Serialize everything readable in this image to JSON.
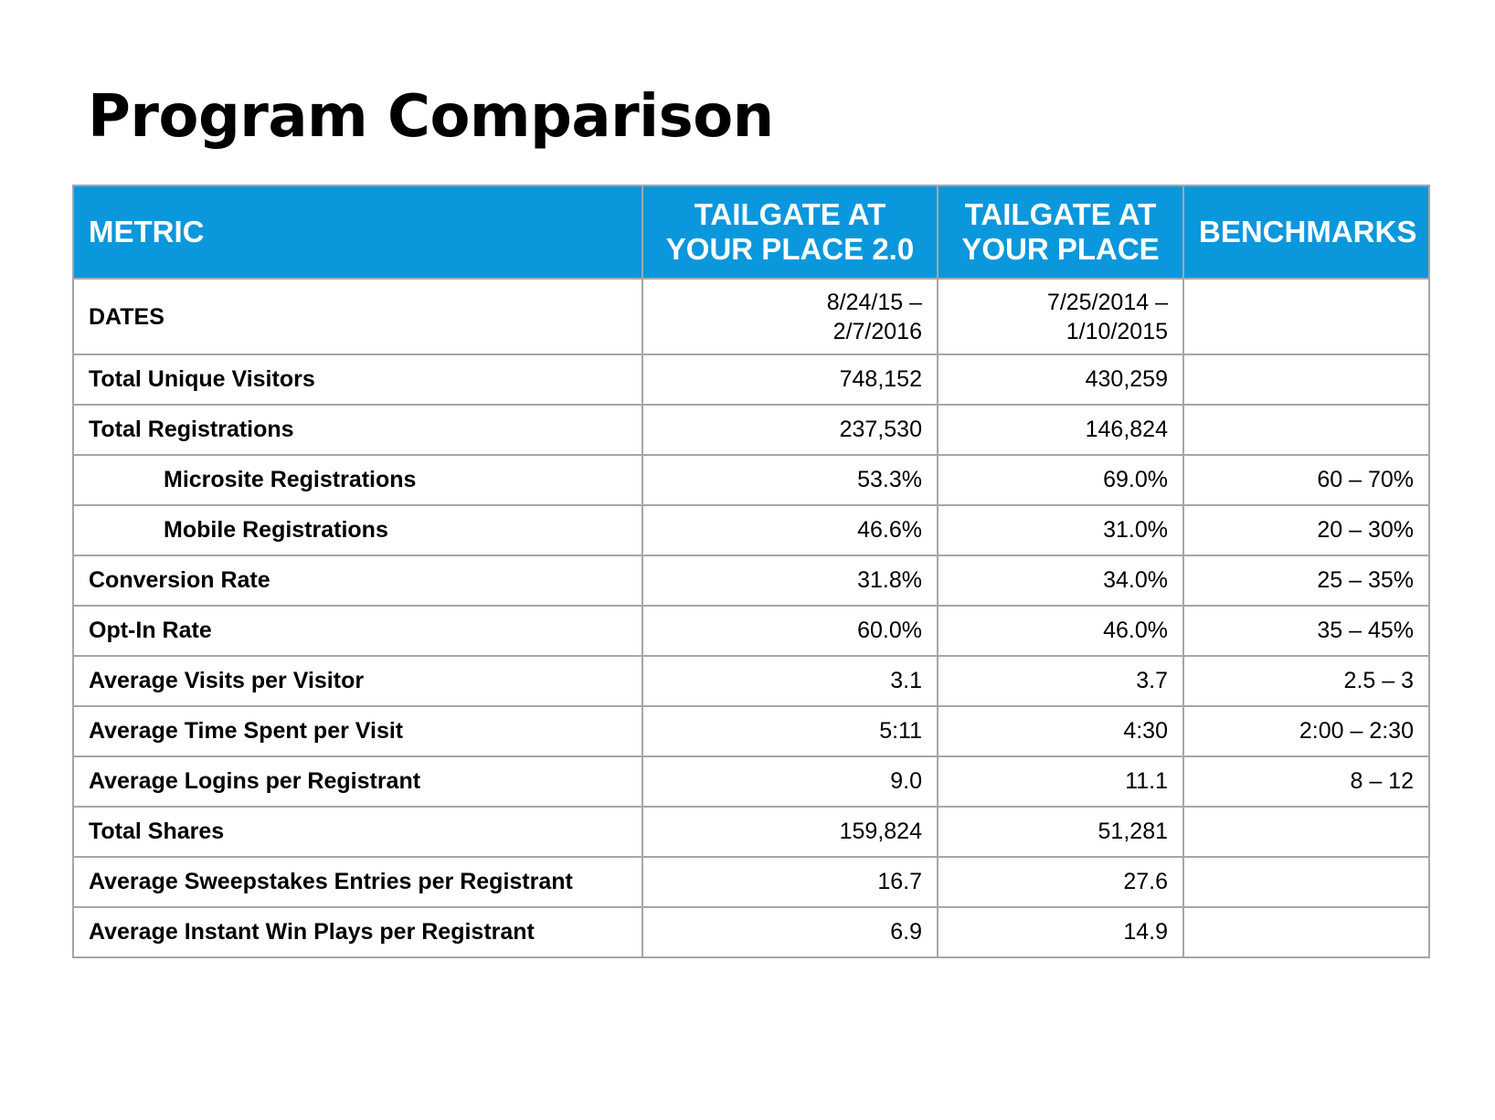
{
  "title": "Program Comparison",
  "table": {
    "headers": [
      "METRIC",
      "TAILGATE AT\nYOUR PLACE 2.0",
      "TAILGATE AT\nYOUR PLACE",
      "BENCHMARKS"
    ],
    "rows": [
      {
        "metric": "DATES",
        "p2": "8/24/15 –\n2/7/2016",
        "p1": "7/25/2014 –\n1/10/2015",
        "bench": ""
      },
      {
        "metric": "Total Unique Visitors",
        "p2": "748,152",
        "p1": "430,259",
        "bench": ""
      },
      {
        "metric": "Total Registrations",
        "p2": "237,530",
        "p1": "146,824",
        "bench": ""
      },
      {
        "metric": "Microsite Registrations",
        "p2": "53.3%",
        "p1": "69.0%",
        "bench": "60 – 70%"
      },
      {
        "metric": "Mobile Registrations",
        "p2": "46.6%",
        "p1": "31.0%",
        "bench": "20 – 30%"
      },
      {
        "metric": "Conversion Rate",
        "p2": "31.8%",
        "p1": "34.0%",
        "bench": "25 – 35%"
      },
      {
        "metric": "Opt-In Rate",
        "p2": "60.0%",
        "p1": "46.0%",
        "bench": "35 – 45%"
      },
      {
        "metric": "Average Visits per Visitor",
        "p2": "3.1",
        "p1": "3.7",
        "bench": "2.5 – 3"
      },
      {
        "metric": "Average Time Spent per Visit",
        "p2": "5:11",
        "p1": "4:30",
        "bench": "2:00 – 2:30"
      },
      {
        "metric": "Average Logins per Registrant",
        "p2": "9.0",
        "p1": "11.1",
        "bench": "8 – 12"
      },
      {
        "metric": "Total Shares",
        "p2": "159,824",
        "p1": "51,281",
        "bench": ""
      },
      {
        "metric": "Average Sweepstakes Entries per Registrant",
        "p2": "16.7",
        "p1": "27.6",
        "bench": ""
      },
      {
        "metric": "Average Instant Win Plays per Registrant",
        "p2": "6.9",
        "p1": "14.9",
        "bench": ""
      }
    ]
  },
  "colors": {
    "header_bg": "#0b97dc",
    "header_text": "#ffffff",
    "border": "#a6a6a6"
  }
}
